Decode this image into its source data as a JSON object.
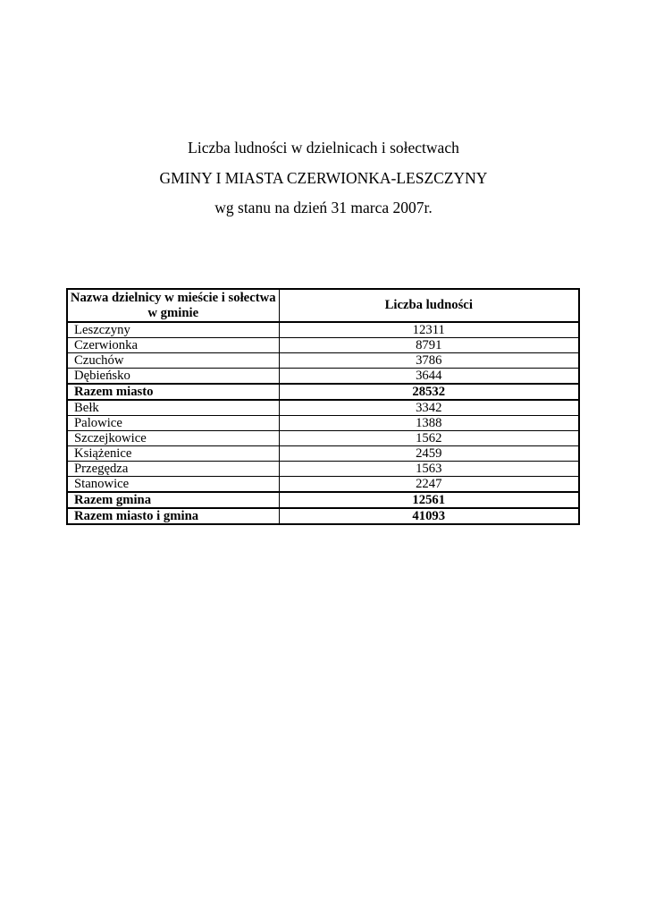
{
  "title": {
    "line1": "Liczba ludności w dzielnicach i sołectwach",
    "line2": "GMINY I MIASTA CZERWIONKA-LESZCZYNY",
    "line3": "wg stanu na dzień 31 marca 2007r."
  },
  "table": {
    "header": {
      "col1_line1": "Nazwa dzielnicy w mieście i sołectwa",
      "col1_line2": "w gminie",
      "col2": "Liczba ludności"
    },
    "rows": [
      {
        "name": "Leszczyny",
        "value": "12311",
        "is_total": false
      },
      {
        "name": "Czerwionka",
        "value": "8791",
        "is_total": false
      },
      {
        "name": "Czuchów",
        "value": "3786",
        "is_total": false
      },
      {
        "name": "Dębieńsko",
        "value": "3644",
        "is_total": false
      },
      {
        "name": "Razem miasto",
        "value": "28532",
        "is_total": true
      },
      {
        "name": "Bełk",
        "value": "3342",
        "is_total": false
      },
      {
        "name": "Palowice",
        "value": "1388",
        "is_total": false
      },
      {
        "name": "Szczejkowice",
        "value": "1562",
        "is_total": false
      },
      {
        "name": "Książenice",
        "value": "2459",
        "is_total": false
      },
      {
        "name": "Przegędza",
        "value": "1563",
        "is_total": false
      },
      {
        "name": "Stanowice",
        "value": "2247",
        "is_total": false
      },
      {
        "name": "Razem gmina",
        "value": "12561",
        "is_total": true
      },
      {
        "name": "Razem miasto i gmina",
        "value": "41093",
        "is_total": true
      }
    ]
  },
  "colors": {
    "text": "#000000",
    "background": "#ffffff",
    "border": "#000000"
  }
}
